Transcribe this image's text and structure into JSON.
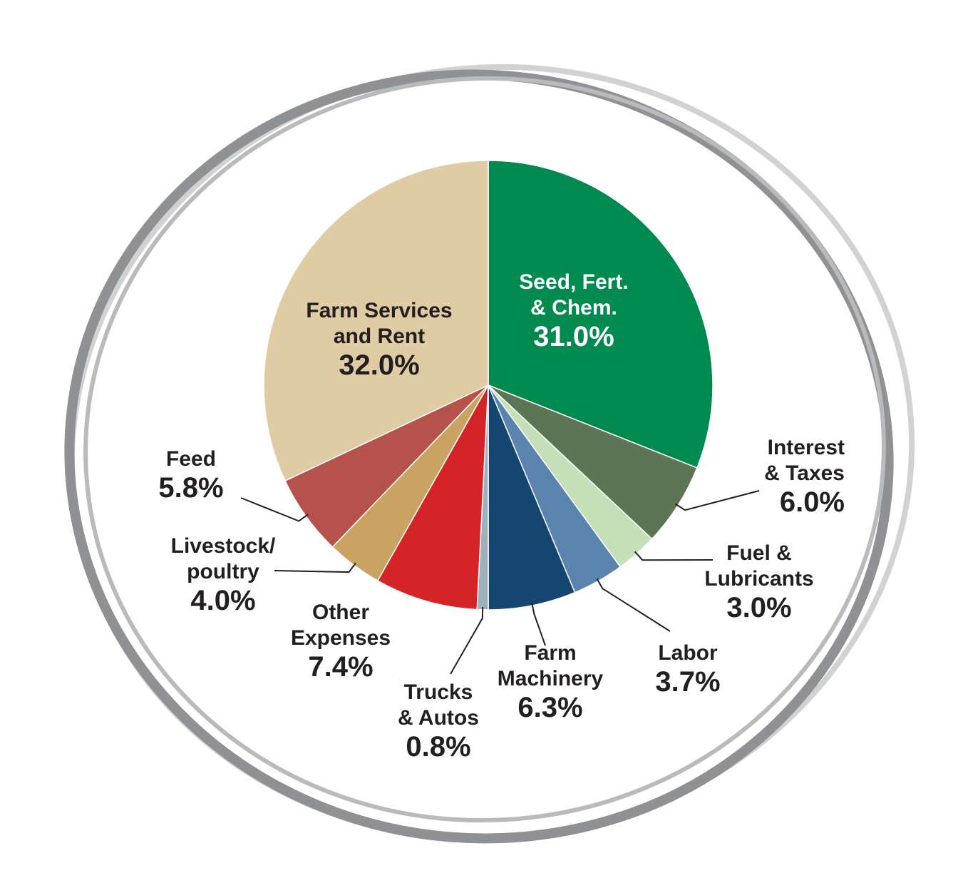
{
  "chart_data": {
    "type": "pie",
    "categories": [
      "Seed, Fert.\n& Chem.",
      "Interest\n& Taxes",
      "Fuel &\nLubricants",
      "Labor",
      "Farm\nMachinery",
      "Trucks\n& Autos",
      "Other\nExpenses",
      "Livestock/\npoultry",
      "Feed",
      "Farm Services\nand Rent"
    ],
    "values": [
      31.0,
      6.0,
      3.0,
      3.7,
      6.3,
      0.8,
      7.4,
      4.0,
      5.8,
      32.0
    ],
    "value_labels": [
      "31.0%",
      "6.0%",
      "3.0%",
      "3.7%",
      "6.3%",
      "0.8%",
      "7.4%",
      "4.0%",
      "5.8%",
      "32.0%"
    ],
    "colors": [
      "#008a4f",
      "#5d7455",
      "#c5e0b8",
      "#5a84ad",
      "#154670",
      "#9fb0bd",
      "#d42428",
      "#c9a361",
      "#b5524c",
      "#dfcba4"
    ]
  }
}
